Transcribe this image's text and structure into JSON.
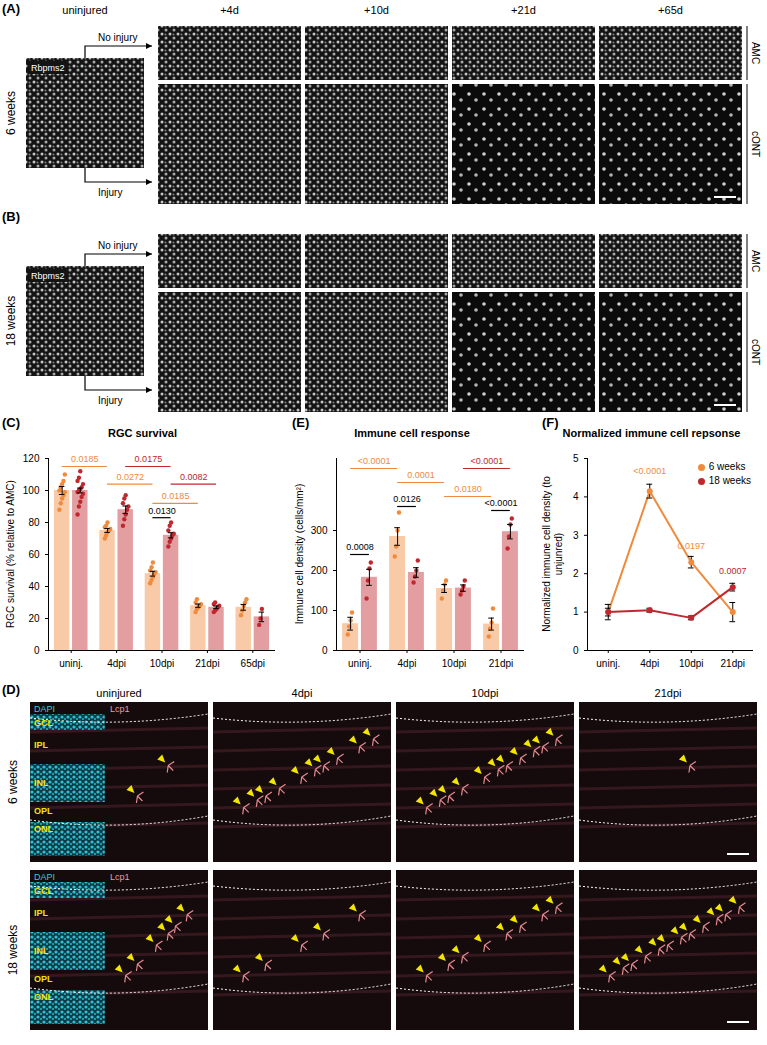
{
  "chart_data": [
    {
      "panel": "(C)",
      "type": "bar",
      "title": "RGC survival",
      "ylabel": "RGC survival (% relative to AMC)",
      "categories": [
        "uninj.",
        "4dpi",
        "10dpi",
        "21dpi",
        "65dpi"
      ],
      "ylim": [
        0,
        120
      ],
      "yticks": [
        0,
        20,
        40,
        60,
        80,
        100,
        120
      ],
      "series": [
        {
          "name": "6 weeks",
          "color": "#f08a3c",
          "values": [
            100,
            75,
            48,
            28,
            27
          ],
          "errors": [
            2.5,
            1.2,
            1.5,
            1,
            1.8
          ],
          "points": [
            [
              88,
              92,
              95,
              97,
              99,
              100,
              102,
              104,
              106,
              110
            ],
            [
              70,
              72,
              74,
              75,
              76,
              77,
              78,
              80
            ],
            [
              42,
              44,
              46,
              48,
              49,
              50,
              52,
              55
            ],
            [
              24,
              26,
              27,
              28,
              29,
              30,
              32
            ],
            [
              22,
              25,
              28,
              30,
              32
            ]
          ]
        },
        {
          "name": "18 weeks",
          "color": "#c0282f",
          "values": [
            100,
            88,
            72,
            27,
            21
          ],
          "errors": [
            1.5,
            2.3,
            1.6,
            0.8,
            3
          ],
          "points": [
            [
              85,
              90,
              93,
              96,
              98,
              99,
              100,
              101,
              102,
              104,
              106,
              108,
              112
            ],
            [
              78,
              82,
              85,
              88,
              90,
              92,
              95,
              97
            ],
            [
              65,
              68,
              70,
              72,
              73,
              75,
              78,
              80
            ],
            [
              24,
              25,
              26,
              27,
              28,
              29,
              30
            ],
            [
              16,
              20,
              26
            ]
          ]
        }
      ],
      "annotations": [
        {
          "text": "0.0185",
          "color": "#f08a3c",
          "from": [
            "uninj.",
            "6 weeks"
          ],
          "to": [
            "4dpi",
            "6 weeks"
          ],
          "y": 115
        },
        {
          "text": "0.0272",
          "color": "#f08a3c",
          "from": [
            "4dpi",
            "6 weeks"
          ],
          "to": [
            "10dpi",
            "6 weeks"
          ],
          "y": 104
        },
        {
          "text": "0.0185",
          "color": "#f08a3c",
          "from": [
            "10dpi",
            "6 weeks"
          ],
          "to": [
            "21dpi",
            "6 weeks"
          ],
          "y": 92
        },
        {
          "text": "0.0175",
          "color": "#c0282f",
          "from": [
            "4dpi",
            "18 weeks"
          ],
          "to": [
            "10dpi",
            "18 weeks"
          ],
          "y": 115
        },
        {
          "text": "0.0082",
          "color": "#c0282f",
          "from": [
            "10dpi",
            "18 weeks"
          ],
          "to": [
            "21dpi",
            "18 weeks"
          ],
          "y": 104
        },
        {
          "text": "0.0130",
          "color": "#000000",
          "from": [
            "10dpi",
            "6 weeks"
          ],
          "to": [
            "10dpi",
            "18 weeks"
          ],
          "y": 83
        }
      ]
    },
    {
      "panel": "(E)",
      "type": "bar",
      "title": "Immune cell response",
      "ylabel": "Immune cell density (cells/mm²)",
      "categories": [
        "uninj.",
        "4dpi",
        "10dpi",
        "21dpi"
      ],
      "ylim": [
        0,
        480
      ],
      "yticks": [
        0,
        100,
        200,
        300
      ],
      "series": [
        {
          "name": "6 weeks",
          "color": "#f08a3c",
          "values": [
            67,
            285,
            155,
            66
          ],
          "errors": [
            16,
            22,
            10,
            15
          ],
          "points": [
            [
              40,
              60,
              75,
              95
            ],
            [
              235,
              260,
              300,
              345
            ],
            [
              130,
              150,
              165,
              175
            ],
            [
              35,
              55,
              70,
              105
            ]
          ]
        },
        {
          "name": "18 weeks",
          "color": "#c0282f",
          "values": [
            183,
            195,
            156,
            297
          ],
          "errors": [
            20,
            12,
            8,
            18
          ],
          "points": [
            [
              130,
              175,
              205,
              220
            ],
            [
              170,
              185,
              200,
              225
            ],
            [
              140,
              150,
              160,
              175
            ],
            [
              255,
              285,
              315,
              330
            ]
          ]
        }
      ],
      "annotations": [
        {
          "text": "0.0008",
          "color": "#000000",
          "from": [
            "uninj.",
            "6 weeks"
          ],
          "to": [
            "uninj.",
            "18 weeks"
          ],
          "y": 240
        },
        {
          "text": "0.0126",
          "color": "#000000",
          "from": [
            "4dpi",
            "6 weeks"
          ],
          "to": [
            "4dpi",
            "18 weeks"
          ],
          "y": 360
        },
        {
          "text": "<0.0001",
          "color": "#000000",
          "from": [
            "21dpi",
            "6 weeks"
          ],
          "to": [
            "21dpi",
            "18 weeks"
          ],
          "y": 350
        },
        {
          "text": "<0.0001",
          "color": "#f08a3c",
          "from": [
            "uninj.",
            "6 weeks"
          ],
          "to": [
            "4dpi",
            "6 weeks"
          ],
          "y": 455
        },
        {
          "text": "0.0001",
          "color": "#f08a3c",
          "from": [
            "4dpi",
            "6 weeks"
          ],
          "to": [
            "10dpi",
            "6 weeks"
          ],
          "y": 420
        },
        {
          "text": "0.0180",
          "color": "#f08a3c",
          "from": [
            "10dpi",
            "6 weeks"
          ],
          "to": [
            "21dpi",
            "6 weeks"
          ],
          "y": 385
        },
        {
          "text": "<0.0001",
          "color": "#c0282f",
          "from": [
            "10dpi",
            "18 weeks"
          ],
          "to": [
            "21dpi",
            "18 weeks"
          ],
          "y": 455
        }
      ]
    },
    {
      "panel": "(F)",
      "type": "line",
      "title": "Normalized immune cell repsonse",
      "ylabel": "Normalized immune cell density (to unjunred)",
      "categories": [
        "uninj.",
        "4dpi",
        "10dpi",
        "21dpi"
      ],
      "ylim": [
        0,
        5
      ],
      "yticks": [
        0,
        1,
        2,
        3,
        4,
        5
      ],
      "legend": "top-right",
      "marker": "circle",
      "series": [
        {
          "name": "6 weeks",
          "color": "#f08a3c",
          "values": [
            1,
            4.15,
            2.3,
            1.0
          ],
          "errors": [
            0.2,
            0.18,
            0.15,
            0.25
          ]
        },
        {
          "name": "18 weeks",
          "color": "#c0282f",
          "values": [
            1,
            1.05,
            0.85,
            1.65
          ],
          "errors": [
            0.1,
            0.05,
            0.05,
            0.1
          ]
        }
      ],
      "annotations": [
        {
          "text": "<0.0001",
          "color": "#f08a3c",
          "x": "4dpi",
          "y": 4.55
        },
        {
          "text": "0.0197",
          "color": "#f08a3c",
          "x": "10dpi",
          "y": 2.6
        },
        {
          "text": "0.0007",
          "color": "#c0282f",
          "x": "21dpi",
          "y": 1.95
        }
      ]
    }
  ],
  "figure_panels": {
    "A": {
      "letter": "(A)",
      "row_label": "6 weeks",
      "uninjured_label": "uninjured",
      "columns": [
        "+4d",
        "+10d",
        "+21d",
        "+65d"
      ],
      "stain": "Rbpms2",
      "arrows": [
        "No injury",
        "Injury"
      ],
      "rows": [
        "AMC",
        "cONT"
      ]
    },
    "B": {
      "letter": "(B)",
      "row_label": "18 weeks",
      "stain": "Rbpms2",
      "arrows": [
        "No injury",
        "Injury"
      ],
      "rows": [
        "AMC",
        "cONT"
      ]
    },
    "D": {
      "letter": "(D)",
      "columns": [
        "uninjured",
        "4dpi",
        "10dpi",
        "21dpi"
      ],
      "rows": [
        "6 weeks",
        "18 weeks"
      ],
      "channels": [
        "DAPI",
        "Lcp1"
      ],
      "layers": [
        "GCL",
        "IPL",
        "INL",
        "OPL",
        "ONL"
      ]
    }
  }
}
